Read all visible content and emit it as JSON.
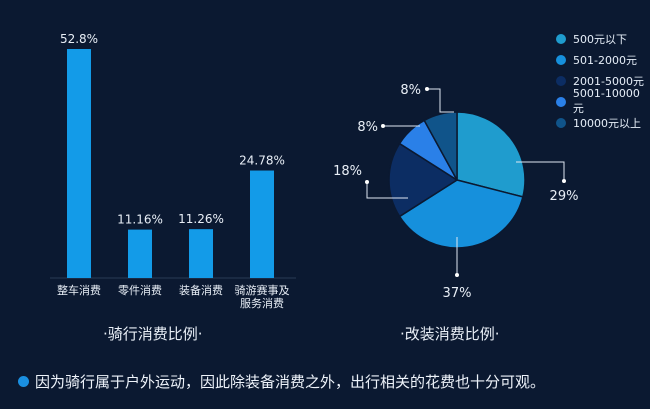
{
  "chart_data": [
    {
      "type": "bar",
      "title": "·骑行消费比例·",
      "categories": [
        "整车消费",
        "零件消费",
        "装备消费",
        "骑游赛事及服务消费"
      ],
      "category_lines": [
        [
          "整车消费"
        ],
        [
          "零件消费"
        ],
        [
          "装备消费"
        ],
        [
          "骑游赛事及",
          "服务消费"
        ]
      ],
      "values": [
        52.8,
        11.16,
        11.26,
        24.78
      ],
      "labels": [
        "52.8%",
        "11.16%",
        "11.26%",
        "24.78%"
      ],
      "ylim": [
        0,
        52.8
      ],
      "color": "#139be8",
      "grid": false
    },
    {
      "type": "pie",
      "title": "·改装消费比例·",
      "slices": [
        {
          "name": "500元以下",
          "value": 29,
          "label": "29%",
          "color": "#1f9cce"
        },
        {
          "name": "501-2000元",
          "value": 37,
          "label": "37%",
          "color": "#1690dc"
        },
        {
          "name": "2001-5000元",
          "value": 18,
          "label": "18%",
          "color": "#0c2d63"
        },
        {
          "name": "5001-10000元",
          "value": 8,
          "label": "8%",
          "color": "#2a80e8"
        },
        {
          "name": "10000元以上",
          "value": 8,
          "label": "8%",
          "color": "#10548a"
        }
      ],
      "legend_position": "top-right"
    }
  ],
  "note": "因为骑行属于户外运动，因此除装备消费之外，出行相关的花费也十分可观。"
}
